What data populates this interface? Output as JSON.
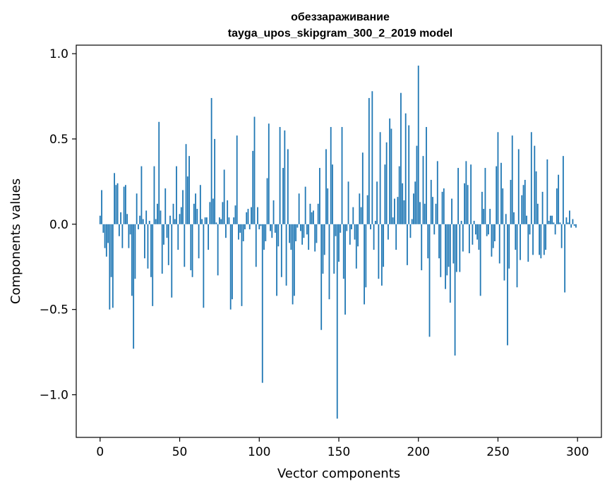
{
  "chart_data": {
    "type": "bar",
    "title": "обеззараживание",
    "subtitle": "tayga_upos_skipgram_300_2_2019 model",
    "xlabel": "Vector components",
    "ylabel": "Components values",
    "xlim": [
      -15,
      315
    ],
    "ylim": [
      -1.25,
      1.05
    ],
    "xticks": [
      0,
      50,
      100,
      150,
      200,
      250,
      300
    ],
    "xtick_labels": [
      "0",
      "50",
      "100",
      "150",
      "200",
      "250",
      "300"
    ],
    "yticks": [
      -1.0,
      -0.5,
      0.0,
      0.5,
      1.0
    ],
    "ytick_labels": [
      "−1.0",
      "−0.5",
      "0.0",
      "0.5",
      "1.0"
    ],
    "bar_color": "#1f77b4",
    "values": [
      0.05,
      0.2,
      -0.05,
      -0.14,
      -0.19,
      -0.11,
      -0.5,
      -0.31,
      -0.49,
      0.3,
      0.23,
      0.24,
      -0.07,
      0.07,
      -0.14,
      0.22,
      0.23,
      0.06,
      -0.14,
      -0.06,
      -0.42,
      -0.73,
      -0.32,
      0.18,
      -0.03,
      0.05,
      0.34,
      0.03,
      -0.2,
      0.08,
      -0.26,
      0.02,
      -0.31,
      -0.48,
      0.34,
      0.03,
      0.12,
      0.6,
      0.08,
      -0.29,
      -0.12,
      0.21,
      -0.08,
      -0.24,
      0.05,
      -0.43,
      0.12,
      0.03,
      0.34,
      -0.15,
      0.06,
      0.1,
      0.2,
      -0.25,
      0.47,
      0.28,
      0.4,
      -0.27,
      -0.31,
      0.12,
      0.18,
      0.09,
      -0.2,
      0.23,
      0.03,
      -0.49,
      0.04,
      0.04,
      -0.15,
      0.13,
      0.74,
      0.15,
      0.5,
      0.01,
      -0.3,
      0.04,
      0.03,
      0.13,
      0.32,
      -0.08,
      0.14,
      0.04,
      -0.5,
      -0.44,
      0.04,
      0.11,
      0.52,
      -0.09,
      -0.05,
      -0.48,
      -0.1,
      -0.03,
      0.07,
      0.09,
      -0.03,
      0.1,
      0.43,
      0.63,
      -0.25,
      0.1,
      -0.03,
      -0.01,
      -0.93,
      -0.15,
      -0.1,
      0.27,
      0.59,
      -0.04,
      -0.08,
      0.14,
      -0.05,
      -0.42,
      -0.13,
      0.57,
      -0.31,
      0.33,
      0.55,
      -0.36,
      0.44,
      -0.11,
      -0.15,
      -0.47,
      -0.42,
      -0.1,
      -0.02,
      0.18,
      -0.04,
      -0.12,
      -0.08,
      0.22,
      -0.06,
      -0.15,
      0.12,
      0.07,
      0.08,
      -0.16,
      -0.11,
      0.12,
      0.33,
      -0.62,
      -0.29,
      -0.18,
      0.44,
      0.21,
      -0.44,
      0.57,
      0.35,
      -0.29,
      -0.07,
      -1.14,
      -0.22,
      -0.05,
      0.57,
      -0.32,
      -0.53,
      -0.04,
      0.25,
      -0.12,
      -0.03,
      0.1,
      -0.09,
      -0.26,
      -0.13,
      0.18,
      0.1,
      0.42,
      -0.47,
      -0.37,
      0.17,
      0.74,
      -0.03,
      0.78,
      -0.15,
      0.02,
      0.25,
      -0.32,
      0.54,
      -0.36,
      -0.25,
      0.35,
      0.48,
      -0.09,
      0.62,
      0.56,
      0.04,
      0.15,
      -0.15,
      0.16,
      0.34,
      0.77,
      0.24,
      0.14,
      0.65,
      -0.24,
      0.58,
      -0.08,
      0.03,
      0.18,
      0.25,
      0.46,
      0.93,
      0.13,
      -0.27,
      0.4,
      0.12,
      0.57,
      -0.2,
      -0.66,
      0.26,
      0.16,
      -0.06,
      0.12,
      0.37,
      -0.2,
      -0.31,
      0.19,
      0.21,
      -0.38,
      -0.3,
      -0.25,
      -0.46,
      0.15,
      -0.23,
      -0.77,
      -0.28,
      0.33,
      -0.28,
      0.02,
      -0.16,
      0.24,
      0.37,
      0.23,
      -0.17,
      0.35,
      -0.12,
      0.02,
      -0.06,
      -0.09,
      -0.15,
      -0.42,
      0.19,
      0.09,
      0.33,
      -0.07,
      -0.06,
      0.09,
      -0.19,
      -0.14,
      -0.1,
      0.34,
      0.54,
      -0.23,
      0.36,
      0.21,
      -0.33,
      0.06,
      -0.71,
      -0.26,
      0.26,
      0.52,
      0.07,
      -0.15,
      -0.37,
      0.44,
      -0.21,
      0.17,
      0.23,
      0.26,
      0.05,
      -0.22,
      -0.06,
      0.54,
      -0.18,
      0.46,
      0.31,
      0.12,
      -0.18,
      -0.2,
      0.19,
      -0.18,
      -0.15,
      0.38,
      0.02,
      0.05,
      0.05,
      0.01,
      -0.06,
      0.21,
      0.29,
      0.01,
      -0.14,
      0.4,
      -0.4,
      0.04,
      0.01,
      0.08,
      -0.02,
      0.03,
      -0.01,
      -0.02
    ]
  }
}
